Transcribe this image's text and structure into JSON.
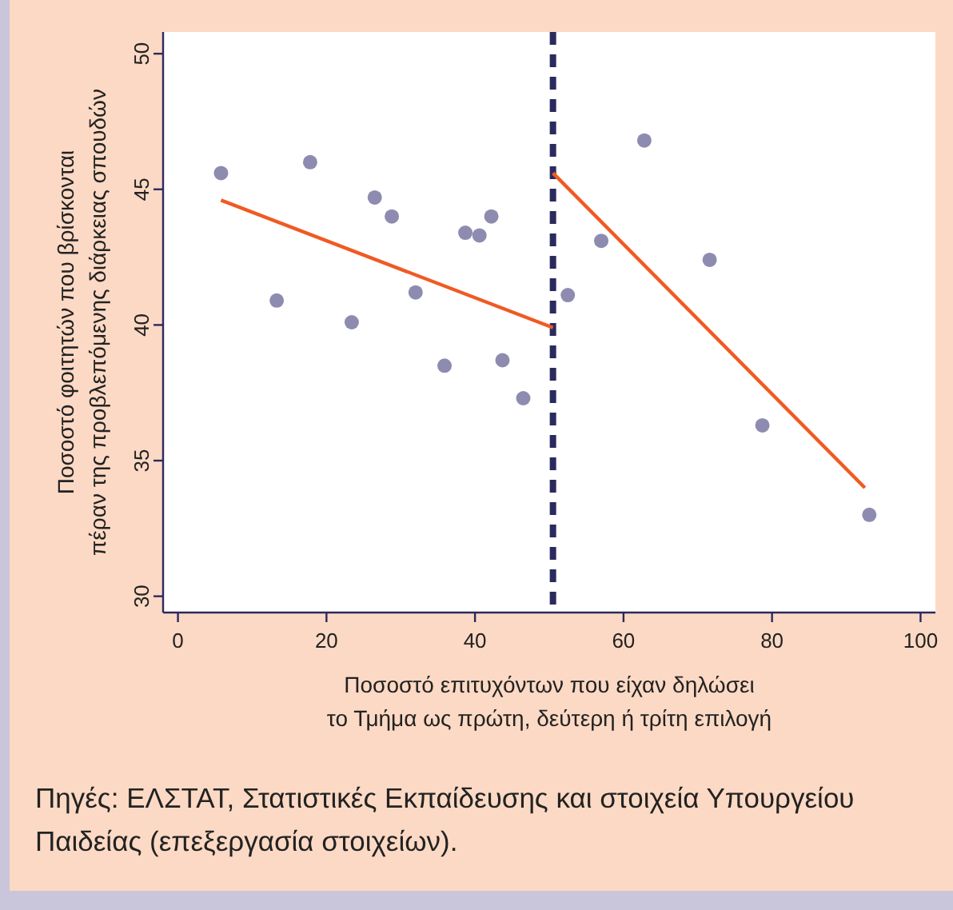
{
  "chart_data": {
    "type": "scatter",
    "xlabel": "Ποσοστό επιτυχόντων που είχαν δηλώσει\nτο Τμήμα ως πρώτη, δεύτερη ή τρίτη επιλογή",
    "ylabel": "Ποσοστό φοιτητών που βρίσκονται\nπέραν της προβλεπόμενης διάρκειας σπουδών",
    "xlim": [
      -2,
      102
    ],
    "ylim": [
      29.4,
      50.8
    ],
    "xticks": [
      0,
      20,
      40,
      60,
      80,
      100
    ],
    "yticks": [
      30,
      35,
      40,
      45,
      50
    ],
    "grid": false,
    "series": [
      {
        "marker": "circle",
        "color": "#8e8bb0",
        "x": [
          5.8,
          13.3,
          17.8,
          23.4,
          26.5,
          28.8,
          32.0,
          35.9,
          38.7,
          40.6,
          42.2,
          43.7,
          46.5,
          52.5,
          57.0,
          62.8,
          71.6,
          78.7,
          93.1
        ],
        "values": [
          45.6,
          40.9,
          46.0,
          40.1,
          44.7,
          44.0,
          41.2,
          38.5,
          43.4,
          43.3,
          44.0,
          38.7,
          37.3,
          41.1,
          43.1,
          46.8,
          42.4,
          36.3,
          33.0
        ]
      },
      {
        "type": "line",
        "color": "#f05a22",
        "x": [
          5.8,
          50.5
        ],
        "values": [
          44.6,
          39.9
        ]
      },
      {
        "type": "line",
        "color": "#f05a22",
        "x": [
          50.5,
          92.5
        ],
        "values": [
          45.6,
          34.0
        ]
      }
    ],
    "ref_lines": [
      {
        "axis": "x",
        "value": 50.5,
        "color": "#2b2a5e",
        "line_style": "dashed"
      }
    ],
    "annotations": [
      "Πηγές: ΕΛΣΤΑΤ, Στατιστικές Εκπαίδευσης και στοιχεία Υπουργείου Παιδείας (επεξεργασία στοιχείων)."
    ]
  }
}
